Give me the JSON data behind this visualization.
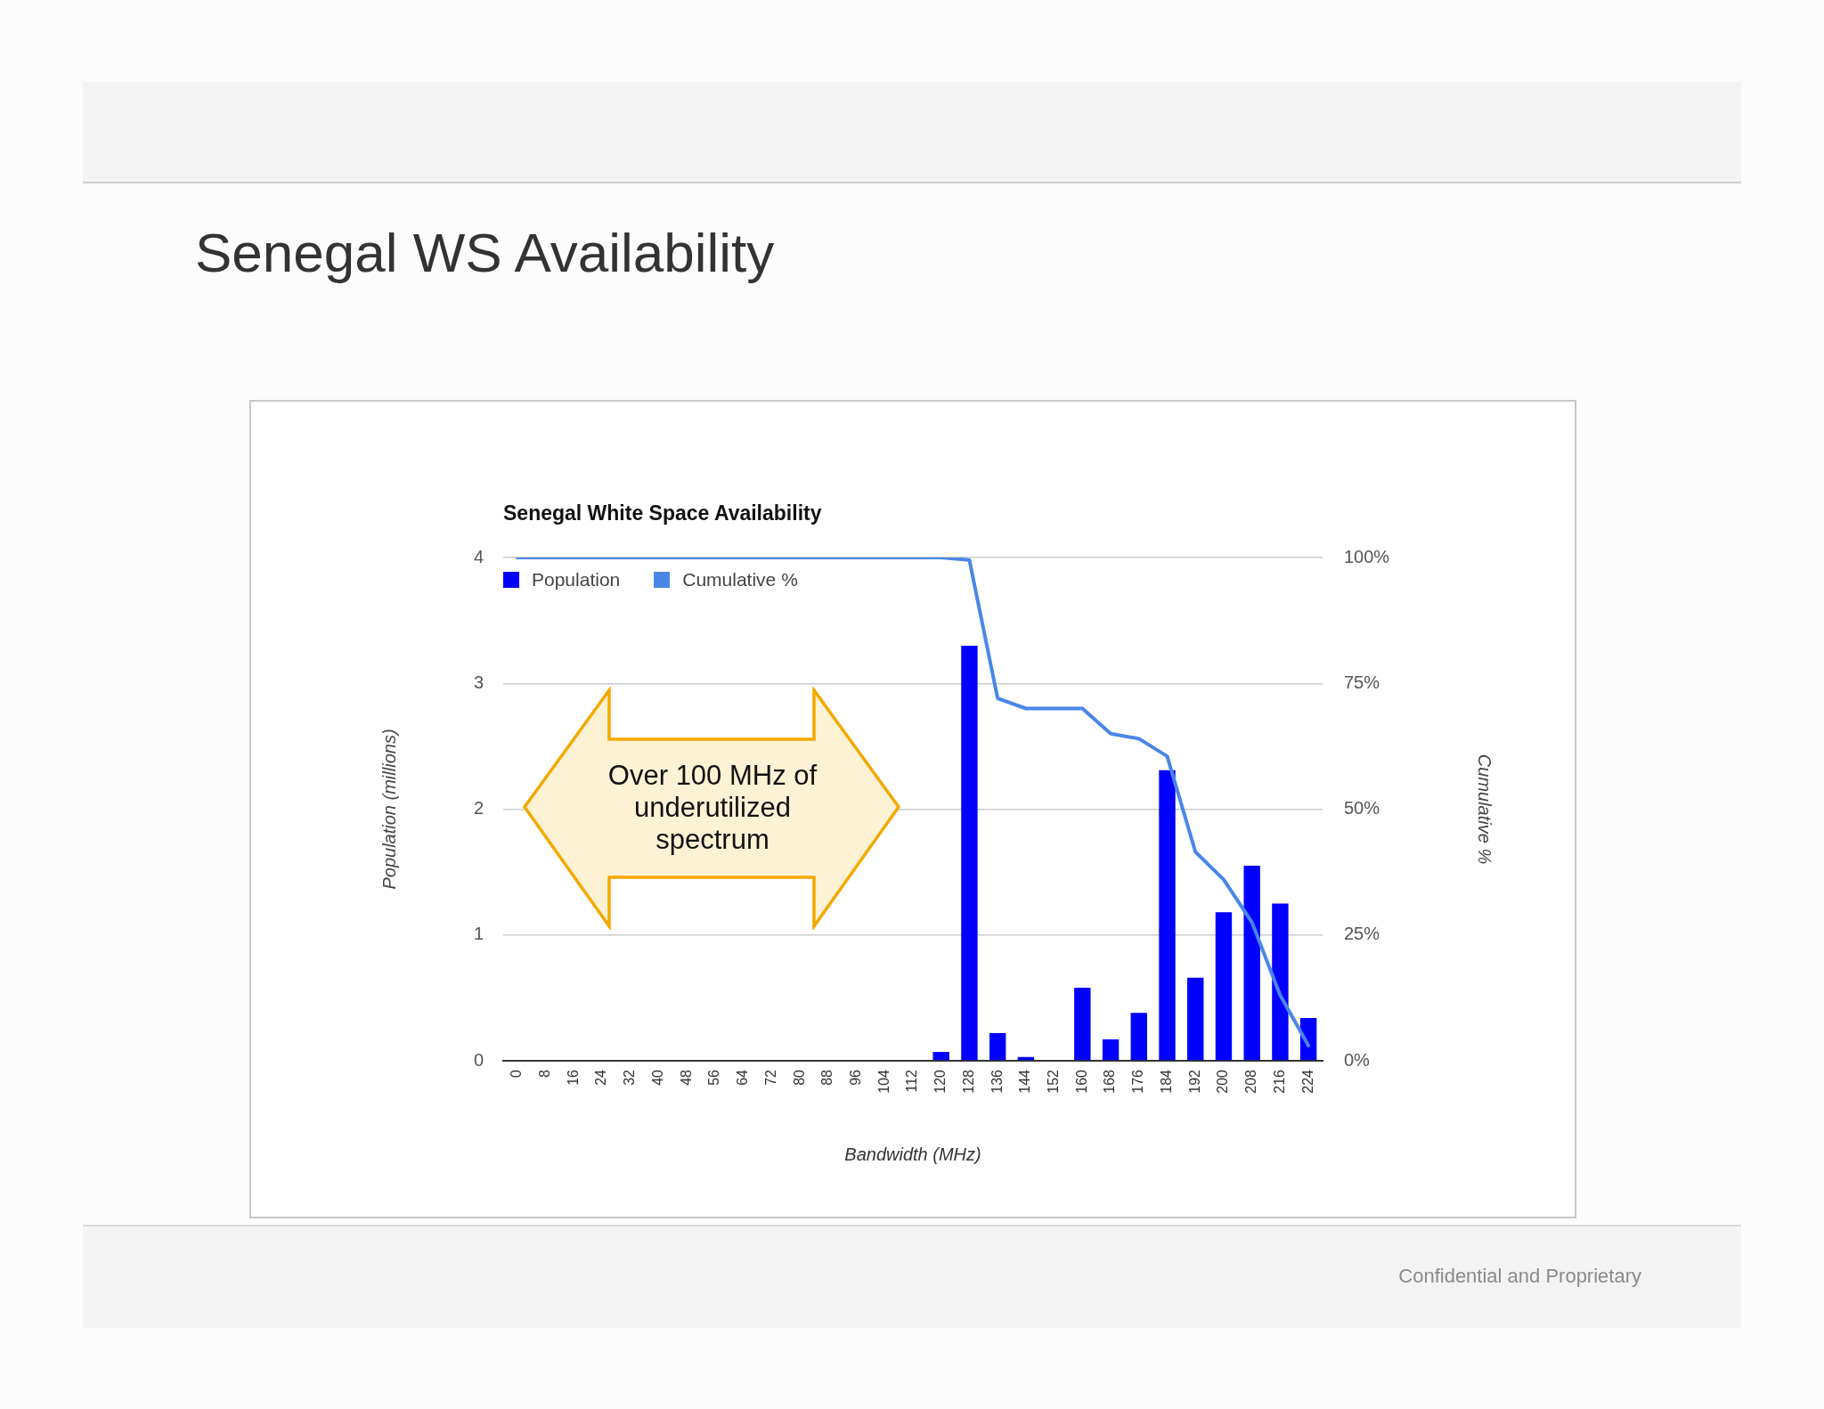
{
  "chart_data": {
    "type": "bar",
    "title": "Senegal WS Availability",
    "subtitle": "Senegal White Space Availability",
    "xlabel": "Bandwidth (MHz)",
    "ylabel": "Population (millions)",
    "y2label": "Cumulative %",
    "annotations": [
      "Over 100 MHz of underutilized spectrum",
      "Confidential and Proprietary"
    ],
    "categories": [
      "0",
      "8",
      "16",
      "24",
      "32",
      "40",
      "48",
      "56",
      "64",
      "72",
      "80",
      "88",
      "96",
      "104",
      "112",
      "120",
      "128",
      "136",
      "144",
      "152",
      "160",
      "168",
      "176",
      "184",
      "192",
      "200",
      "208",
      "216",
      "224"
    ],
    "series": [
      {
        "name": "Population",
        "color": "#0000ff",
        "values": [
          0,
          0,
          0,
          0,
          0,
          0,
          0,
          0,
          0,
          0,
          0,
          0,
          0,
          0,
          0,
          0.07,
          3.3,
          0.22,
          0.03,
          0,
          0.58,
          0.17,
          0.38,
          2.31,
          0.66,
          1.18,
          1.55,
          1.25,
          0.34
        ]
      },
      {
        "name": "Cumulative %",
        "type": "line",
        "axis": "y2",
        "color": "#4a86e8",
        "values": [
          100,
          100,
          100,
          100,
          100,
          100,
          100,
          100,
          100,
          100,
          100,
          100,
          100,
          100,
          100,
          100,
          99.5,
          72,
          70,
          70,
          70,
          65,
          64,
          60.5,
          41.5,
          36,
          27.5,
          13,
          3
        ]
      }
    ],
    "ylim": [
      0,
      4
    ],
    "yticks": [
      0,
      1,
      2,
      3,
      4
    ],
    "y2lim": [
      0,
      100
    ],
    "y2ticks": [
      {
        "value": 0,
        "label": "0%"
      },
      {
        "value": 25,
        "label": "25%"
      },
      {
        "value": 50,
        "label": "50%"
      },
      {
        "value": 75,
        "label": "75%"
      },
      {
        "value": 100,
        "label": "100%"
      }
    ],
    "grid": "y",
    "legend": "top left",
    "marker": "none",
    "line_style": "solid"
  }
}
